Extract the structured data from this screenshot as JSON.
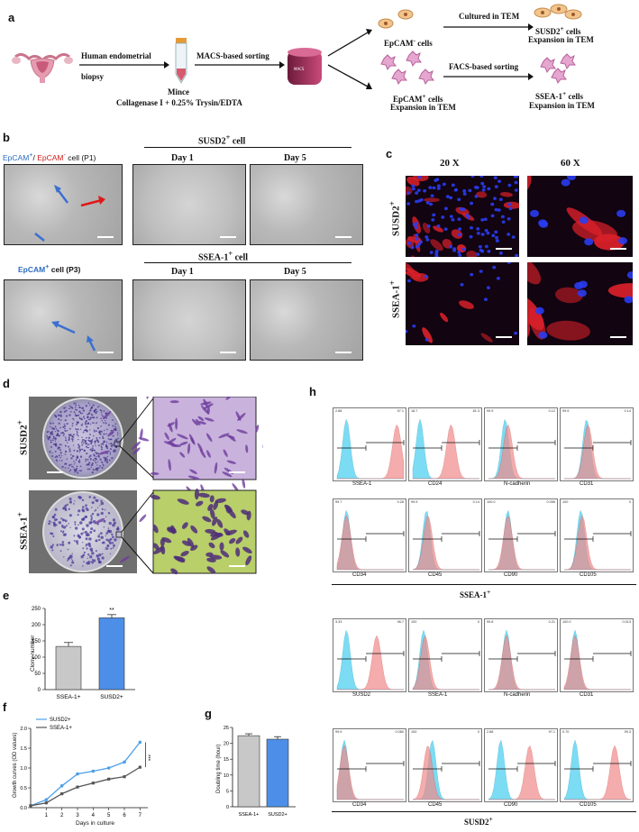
{
  "panel_a": {
    "label": "a",
    "step1": "Human endometrial",
    "step1b": "biopsy",
    "step2": "MACS-based sorting",
    "mince": "Mince",
    "enzyme": "Collagenase I + 0.25% Trysin/EDTA",
    "neg_cells": "EpCAM",
    "neg_suffix": "cells",
    "cultured": "Cultured in TEM",
    "susd2_cells": "SUSD2",
    "susd2_cells_suffix": "cells",
    "expansion": "Expansion in TEM",
    "pos_cells": "EpCAM",
    "pos_suffix": "cells",
    "pos_expansion": "Expansion in TEM",
    "facs": "FACS-based sorting",
    "ssea_cells": "SSEA-1",
    "ssea_cells_suffix": "cells",
    "ssea_expansion": "Expansion in TEM"
  },
  "panel_b": {
    "label": "b",
    "p1_a": "EpCAM",
    "p1_sep": "/",
    "p1_b": "EpCAM",
    "p1_c": "cell (P1)",
    "susd2_header": "SUSD2",
    "susd2_header_suffix": "cell",
    "day1": "Day 1",
    "day5": "Day 5",
    "p3_a": "EpCAM",
    "p3_b": "cell (P3)",
    "ssea_header": "SSEA-1",
    "ssea_header_suffix": "cell",
    "day1b": "Day 1",
    "day5b": "Day 5"
  },
  "panel_c": {
    "label": "c",
    "mag1": "20 X",
    "mag2": "60 X",
    "row1": "SUSD2",
    "row2": "SSEA-1"
  },
  "panel_d": {
    "label": "d",
    "row1": "SUSD2",
    "row2": "SSEA-1"
  },
  "panel_e": {
    "label": "e",
    "chart_data": {
      "type": "bar",
      "categories": [
        "SSEA-1+",
        "SUSD2+"
      ],
      "values": [
        133,
        221
      ],
      "errors": [
        12,
        10
      ],
      "ylabel": "Clony number",
      "ylim": [
        0,
        250
      ],
      "yticks": [
        0,
        50,
        100,
        150,
        200,
        250
      ],
      "significance": "**",
      "colors": [
        "#c8c8c8",
        "#4d8fe8"
      ]
    }
  },
  "panel_f": {
    "label": "f",
    "chart_data": {
      "type": "line",
      "x": [
        0,
        1,
        2,
        3,
        4,
        5,
        6,
        7
      ],
      "series": [
        {
          "name": "SUSD2+",
          "values": [
            0.05,
            0.2,
            0.55,
            0.85,
            0.92,
            1.0,
            1.15,
            1.65
          ],
          "color": "#4d9fe8"
        },
        {
          "name": "SSEA-1+",
          "values": [
            0.05,
            0.12,
            0.35,
            0.52,
            0.62,
            0.72,
            0.78,
            1.02
          ],
          "color": "#555555"
        }
      ],
      "xlabel": "Days in culture",
      "ylabel": "Growth curves (OD values)",
      "xticks": [
        1,
        2,
        3,
        4,
        5,
        6,
        7
      ],
      "yticks": [
        0.0,
        0.5,
        1.0,
        1.5,
        2.0
      ],
      "ylim": [
        0,
        2.0
      ],
      "significance": "***"
    }
  },
  "panel_g": {
    "label": "g",
    "chart_data": {
      "type": "bar",
      "categories": [
        "SSEA-1+",
        "SUSD2+"
      ],
      "values": [
        22.4,
        21.3
      ],
      "errors": [
        0.6,
        0.8
      ],
      "ylabel": "Doubling time (hour)",
      "ylim": [
        0,
        25
      ],
      "yticks": [
        0,
        5,
        10,
        15,
        20,
        25
      ],
      "colors": [
        "#c8c8c8",
        "#4d8fe8"
      ]
    }
  },
  "panel_h": {
    "label": "h",
    "group1": "SSEA-1",
    "group2": "SUSD2",
    "top_row1": [
      {
        "marker": "SSEA-1",
        "left": "2.88",
        "right": "97.1",
        "red_peak": 0.88,
        "blue_peak": 0.18
      },
      {
        "marker": "CD24",
        "left": "18.7",
        "right": "81.3",
        "red_peak": 0.58,
        "blue_peak": 0.15
      },
      {
        "marker": "N-cadherin",
        "left": "99.9",
        "right": "0.12",
        "red_peak": 0.32,
        "blue_peak": 0.28
      },
      {
        "marker": "CD31",
        "left": "99.9",
        "right": "0.14",
        "red_peak": 0.38,
        "blue_peak": 0.36
      }
    ],
    "top_row2": [
      {
        "marker": "CD34",
        "left": "99.7",
        "right": "0.28",
        "red_peak": 0.18,
        "blue_peak": 0.18
      },
      {
        "marker": "CD45",
        "left": "99.9",
        "right": "0.14",
        "red_peak": 0.26,
        "blue_peak": 0.24
      },
      {
        "marker": "CD90",
        "left": "100.0",
        "right": "0.056",
        "red_peak": 0.32,
        "blue_peak": 0.32
      },
      {
        "marker": "CD105",
        "left": "100",
        "right": "0",
        "red_peak": 0.3,
        "blue_peak": 0.28
      }
    ],
    "bot_row1": [
      {
        "marker": "SUSD2",
        "left": "3.33",
        "right": "96.7",
        "red_peak": 0.6,
        "blue_peak": 0.18
      },
      {
        "marker": "SSEA-1",
        "left": "100",
        "right": "0",
        "red_peak": 0.22,
        "blue_peak": 0.2
      },
      {
        "marker": "N-cadherin",
        "left": "99.8",
        "right": "0.21",
        "red_peak": 0.3,
        "blue_peak": 0.3
      },
      {
        "marker": "CD31",
        "left": "100.0",
        "right": "0.013",
        "red_peak": 0.2,
        "blue_peak": 0.2
      }
    ],
    "bot_row2": [
      {
        "marker": "CD34",
        "left": "99.9",
        "right": "0.080",
        "red_peak": 0.15,
        "blue_peak": 0.15
      },
      {
        "marker": "CD45",
        "left": "100",
        "right": "0",
        "red_peak": 0.26,
        "blue_peak": 0.32
      },
      {
        "marker": "CD90",
        "left": "2.88",
        "right": "97.1",
        "red_peak": 0.62,
        "blue_peak": 0.22
      },
      {
        "marker": "CD105",
        "left": "0.70",
        "right": "99.3",
        "red_peak": 0.75,
        "blue_peak": 0.2
      }
    ]
  }
}
